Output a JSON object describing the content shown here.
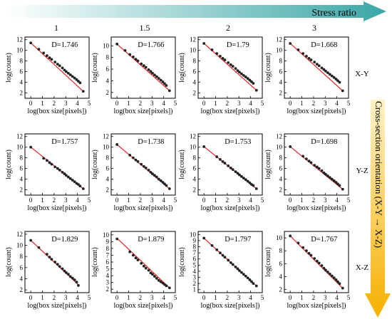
{
  "header": {
    "arrow_label": "Stress ratio",
    "arrow_color_start": "#ffffff",
    "arrow_color_end": "#3aa6a6",
    "columns": [
      "1",
      "1.5",
      "2",
      "3"
    ]
  },
  "side": {
    "arrow_label": "Cross-section orientation (X-Y → X-Z)",
    "arrow_color_start": "#fff2c8",
    "arrow_color_end": "#f5b000",
    "rows": [
      "X-Y",
      "Y-Z",
      "X-Z"
    ]
  },
  "style": {
    "fit_line_color": "#e8211d",
    "point_color": "#222222"
  },
  "chart_data": [
    {
      "type": "scatter",
      "row": "X-Y",
      "column": "1",
      "annotation": "D=1.746",
      "xlabel": "log(box size[pixels])",
      "ylabel": "log(count)",
      "xlim": [
        -0.5,
        5
      ],
      "ylim": [
        1,
        12.5
      ],
      "xticks": [
        0,
        1,
        2,
        3,
        4,
        5
      ],
      "yticks": [
        2,
        4,
        6,
        8,
        10,
        12
      ],
      "x": [
        0,
        0.69,
        1.1,
        1.39,
        1.61,
        1.79,
        2.08,
        2.3,
        2.48,
        2.71,
        2.89,
        3.04,
        3.22,
        3.4,
        3.58,
        3.76,
        3.93,
        4.08,
        4.23,
        4.5
      ],
      "y": [
        11.4,
        10.2,
        9.5,
        9.0,
        8.6,
        8.3,
        7.8,
        7.4,
        7.1,
        6.7,
        6.3,
        6.0,
        5.7,
        5.4,
        5.1,
        4.8,
        4.5,
        4.2,
        3.9,
        2.3
      ],
      "fit": {
        "x": [
          0,
          4.5
        ],
        "y": [
          11.4,
          2.3
        ]
      }
    },
    {
      "type": "scatter",
      "row": "X-Y",
      "column": "1.5",
      "annotation": "D=1.766",
      "xlabel": "log(box size[pixels])",
      "ylabel": "log(count)",
      "xlim": [
        -0.5,
        5
      ],
      "ylim": [
        1,
        11.5
      ],
      "xticks": [
        0,
        1,
        2,
        3,
        4,
        5
      ],
      "yticks": [
        2,
        4,
        6,
        8,
        10
      ],
      "x": [
        0,
        0.69,
        1.1,
        1.39,
        1.61,
        1.79,
        2.08,
        2.3,
        2.48,
        2.71,
        2.89,
        3.04,
        3.22,
        3.4,
        3.58,
        3.76,
        3.93,
        4.08,
        4.23,
        4.5
      ],
      "y": [
        10.3,
        9.2,
        8.5,
        8.1,
        7.7,
        7.4,
        6.9,
        6.6,
        6.3,
        5.9,
        5.6,
        5.3,
        5.0,
        4.7,
        4.4,
        4.1,
        3.8,
        3.5,
        3.2,
        2.3
      ],
      "fit": {
        "x": [
          0,
          4.5
        ],
        "y": [
          10.3,
          2.3
        ]
      }
    },
    {
      "type": "scatter",
      "row": "X-Y",
      "column": "2",
      "annotation": "D=1.79",
      "xlabel": "log(box size[pixels])",
      "ylabel": "log(count)",
      "xlim": [
        -0.5,
        5
      ],
      "ylim": [
        1,
        12.5
      ],
      "xticks": [
        0,
        1,
        2,
        3,
        4,
        5
      ],
      "yticks": [
        2,
        4,
        6,
        8,
        10,
        12
      ],
      "x": [
        0,
        0.69,
        1.1,
        1.39,
        1.61,
        1.79,
        2.08,
        2.3,
        2.48,
        2.71,
        2.89,
        3.04,
        3.22,
        3.4,
        3.58,
        3.76,
        3.93,
        4.08,
        4.23,
        4.5
      ],
      "y": [
        11.3,
        10.1,
        9.4,
        8.9,
        8.5,
        8.2,
        7.7,
        7.3,
        7.0,
        6.6,
        6.2,
        5.9,
        5.6,
        5.3,
        5.0,
        4.7,
        4.4,
        4.1,
        3.8,
        2.5
      ],
      "fit": {
        "x": [
          0,
          4.5
        ],
        "y": [
          11.3,
          2.5
        ]
      }
    },
    {
      "type": "scatter",
      "row": "X-Y",
      "column": "3",
      "annotation": "D=1.668",
      "xlabel": "log(box size[pixels])",
      "ylabel": "log(count)",
      "xlim": [
        -0.5,
        5
      ],
      "ylim": [
        1,
        12.5
      ],
      "xticks": [
        0,
        1,
        2,
        3,
        4,
        5
      ],
      "yticks": [
        2,
        4,
        6,
        8,
        10,
        12
      ],
      "x": [
        0,
        0.69,
        1.1,
        1.39,
        1.61,
        1.79,
        2.08,
        2.3,
        2.48,
        2.71,
        2.89,
        3.04,
        3.22,
        3.4,
        3.58,
        3.76,
        3.93,
        4.08,
        4.23,
        4.5
      ],
      "y": [
        11.3,
        10.1,
        9.4,
        8.9,
        8.5,
        8.2,
        7.8,
        7.4,
        7.1,
        6.7,
        6.4,
        6.1,
        5.8,
        5.5,
        5.2,
        4.9,
        4.6,
        4.3,
        4.0,
        2.4
      ],
      "fit": {
        "x": [
          0,
          4.5
        ],
        "y": [
          11.3,
          2.4
        ]
      }
    },
    {
      "type": "scatter",
      "row": "Y-Z",
      "column": "1",
      "annotation": "D=1.757",
      "xlabel": "log(box size[pixels])",
      "ylabel": "log(count)",
      "xlim": [
        -0.5,
        5
      ],
      "ylim": [
        1,
        12.5
      ],
      "xticks": [
        0,
        1,
        2,
        3,
        4,
        5
      ],
      "yticks": [
        2,
        4,
        6,
        8,
        10,
        12
      ],
      "x": [
        0,
        1.1,
        1.39,
        1.61,
        1.79,
        2.08,
        2.3,
        2.48,
        2.71,
        2.89,
        3.04,
        3.22,
        3.4,
        3.58,
        3.76,
        3.93,
        4.08,
        4.23,
        4.5
      ],
      "y": [
        10.0,
        7.9,
        7.5,
        7.1,
        6.8,
        6.3,
        6.0,
        5.7,
        5.3,
        5.0,
        4.7,
        4.4,
        4.1,
        3.8,
        3.5,
        3.2,
        3.0,
        2.7,
        2.2
      ],
      "fit": {
        "x": [
          0,
          4.5
        ],
        "y": [
          10.0,
          2.2
        ]
      }
    },
    {
      "type": "scatter",
      "row": "Y-Z",
      "column": "1.5",
      "annotation": "D=1.738",
      "xlabel": "log(box size[pixels])",
      "ylabel": "log(count)",
      "xlim": [
        -0.5,
        5
      ],
      "ylim": [
        1,
        12.5
      ],
      "xticks": [
        0,
        1,
        2,
        3,
        4,
        5
      ],
      "yticks": [
        2,
        4,
        6,
        8,
        10,
        12
      ],
      "x": [
        0,
        1.1,
        1.39,
        1.61,
        1.79,
        2.08,
        2.3,
        2.48,
        2.71,
        2.89,
        3.04,
        3.22,
        3.4,
        3.58,
        3.76,
        3.93,
        4.08,
        4.23,
        4.5
      ],
      "y": [
        10.5,
        8.5,
        8.0,
        7.6,
        7.3,
        6.8,
        6.4,
        6.1,
        5.7,
        5.3,
        5.0,
        4.7,
        4.4,
        4.0,
        3.7,
        3.4,
        3.1,
        2.8,
        2.2
      ],
      "fit": {
        "x": [
          0,
          4.5
        ],
        "y": [
          10.5,
          2.2
        ]
      }
    },
    {
      "type": "scatter",
      "row": "Y-Z",
      "column": "2",
      "annotation": "D=1.753",
      "xlabel": "log(box size[pixels])",
      "ylabel": "log(count)",
      "xlim": [
        -0.5,
        5
      ],
      "ylim": [
        1,
        12.5
      ],
      "xticks": [
        0,
        1,
        2,
        3,
        4,
        5
      ],
      "yticks": [
        2,
        4,
        6,
        8,
        10,
        12
      ],
      "x": [
        0,
        1.1,
        1.39,
        1.61,
        1.79,
        2.08,
        2.3,
        2.48,
        2.71,
        2.89,
        3.04,
        3.22,
        3.4,
        3.58,
        3.76,
        3.93,
        4.08,
        4.23,
        4.5
      ],
      "y": [
        10.1,
        8.2,
        7.7,
        7.3,
        7.0,
        6.5,
        6.1,
        5.8,
        5.4,
        5.1,
        4.8,
        4.5,
        4.2,
        3.9,
        3.6,
        3.3,
        3.0,
        2.8,
        2.2
      ],
      "fit": {
        "x": [
          0,
          4.5
        ],
        "y": [
          10.1,
          2.2
        ]
      }
    },
    {
      "type": "scatter",
      "row": "Y-Z",
      "column": "3",
      "annotation": "D=1.698",
      "xlabel": "log(box size[pixels])",
      "ylabel": "log(count)",
      "xlim": [
        -0.5,
        5
      ],
      "ylim": [
        1,
        12.5
      ],
      "xticks": [
        0,
        1,
        2,
        3,
        4,
        5
      ],
      "yticks": [
        2,
        4,
        6,
        8,
        10,
        12
      ],
      "x": [
        0,
        1.1,
        1.39,
        1.61,
        1.79,
        2.08,
        2.3,
        2.48,
        2.71,
        2.89,
        3.04,
        3.22,
        3.4,
        3.58,
        3.76,
        3.93,
        4.08,
        4.23,
        4.5
      ],
      "y": [
        10.1,
        8.3,
        7.8,
        7.4,
        7.1,
        6.6,
        6.3,
        6.0,
        5.6,
        5.2,
        4.9,
        4.6,
        4.3,
        4.0,
        3.7,
        3.4,
        3.1,
        2.8,
        2.1
      ],
      "fit": {
        "x": [
          0,
          4.5
        ],
        "y": [
          10.1,
          2.1
        ]
      }
    },
    {
      "type": "scatter",
      "row": "X-Z",
      "column": "1",
      "annotation": "D=1.829",
      "xlabel": "log(box size[pixels])",
      "ylabel": "log(count)",
      "xlim": [
        -0.5,
        5
      ],
      "ylim": [
        1.5,
        12.5
      ],
      "xticks": [
        0,
        1,
        2,
        3,
        4,
        5
      ],
      "yticks": [
        2,
        4,
        6,
        8,
        10,
        12
      ],
      "x": [
        0,
        0.69,
        1.39,
        1.61,
        1.79,
        2.08,
        2.3,
        2.48,
        2.71,
        2.89,
        3.04,
        3.22,
        3.4,
        3.58,
        3.76,
        3.93,
        4.08
      ],
      "y": [
        10.9,
        9.6,
        8.4,
        7.9,
        7.5,
        7.0,
        6.6,
        6.2,
        5.8,
        5.4,
        5.1,
        4.8,
        4.4,
        4.1,
        3.8,
        3.4,
        2.8
      ],
      "fit": {
        "x": [
          0,
          4.1
        ],
        "y": [
          10.9,
          2.9
        ]
      }
    },
    {
      "type": "scatter",
      "row": "X-Z",
      "column": "1.5",
      "annotation": "D=1.879",
      "xlabel": "log(box size[pixels])",
      "ylabel": "log(count)",
      "xlim": [
        -0.5,
        5
      ],
      "ylim": [
        1.5,
        10.5
      ],
      "xticks": [
        0,
        1,
        2,
        3,
        4,
        5
      ],
      "yticks": [
        2,
        3,
        4,
        5,
        6,
        7,
        8,
        9,
        10
      ],
      "x": [
        0,
        1.1,
        1.39,
        1.61,
        1.79,
        2.08,
        2.3,
        2.48,
        2.71,
        2.89,
        3.04,
        3.22,
        3.4,
        3.58,
        3.76,
        3.93,
        4.08,
        4.23,
        4.5
      ],
      "y": [
        9.4,
        7.5,
        7.0,
        6.6,
        6.3,
        5.8,
        5.4,
        5.1,
        4.8,
        4.4,
        4.2,
        3.9,
        3.6,
        3.3,
        3.1,
        2.9,
        2.7,
        2.5,
        2.2
      ],
      "fit": {
        "x": [
          0,
          4.5
        ],
        "y": [
          9.5,
          2.2
        ]
      }
    },
    {
      "type": "scatter",
      "row": "X-Z",
      "column": "2",
      "annotation": "D=1.797",
      "xlabel": "log(box size[pixels])",
      "ylabel": "log(count)",
      "xlim": [
        -0.5,
        5
      ],
      "ylim": [
        0.5,
        10.5
      ],
      "xticks": [
        0,
        1,
        2,
        3,
        4,
        5
      ],
      "yticks": [
        1,
        2,
        3,
        4,
        5,
        6,
        7,
        8,
        9,
        10
      ],
      "x": [
        0,
        0.69,
        1.1,
        1.39,
        1.61,
        1.79,
        2.08,
        2.3,
        2.48,
        2.71,
        2.89,
        3.04,
        3.22,
        3.4,
        3.58,
        3.76,
        3.93,
        4.08,
        4.23,
        4.5
      ],
      "y": [
        9.4,
        8.2,
        7.5,
        7.0,
        6.6,
        6.3,
        5.8,
        5.4,
        5.1,
        4.7,
        4.4,
        4.1,
        3.8,
        3.5,
        3.2,
        2.9,
        2.6,
        2.3,
        2.0,
        1.6
      ],
      "fit": {
        "x": [
          0,
          4.5
        ],
        "y": [
          9.4,
          1.6
        ]
      }
    },
    {
      "type": "scatter",
      "row": "X-Z",
      "column": "3",
      "annotation": "D=1.767",
      "xlabel": "log(box size[pixels])",
      "ylabel": "log(count)",
      "xlim": [
        -0.5,
        5
      ],
      "ylim": [
        1.5,
        11
      ],
      "xticks": [
        0,
        1,
        2,
        3,
        4,
        5
      ],
      "yticks": [
        2,
        4,
        6,
        8,
        10
      ],
      "x": [
        0,
        0.69,
        1.1,
        1.39,
        1.61,
        1.79,
        2.08,
        2.3,
        2.48,
        2.71,
        2.89,
        3.04,
        3.22,
        3.4,
        3.58,
        3.76,
        3.93,
        4.08,
        4.23,
        4.5
      ],
      "y": [
        10.3,
        9.2,
        8.5,
        8.0,
        7.6,
        7.3,
        6.8,
        6.4,
        6.1,
        5.7,
        5.3,
        5.0,
        4.7,
        4.4,
        4.1,
        3.8,
        3.5,
        3.2,
        2.9,
        2.2
      ],
      "fit": {
        "x": [
          0,
          4.5
        ],
        "y": [
          10.3,
          2.2
        ]
      }
    }
  ]
}
